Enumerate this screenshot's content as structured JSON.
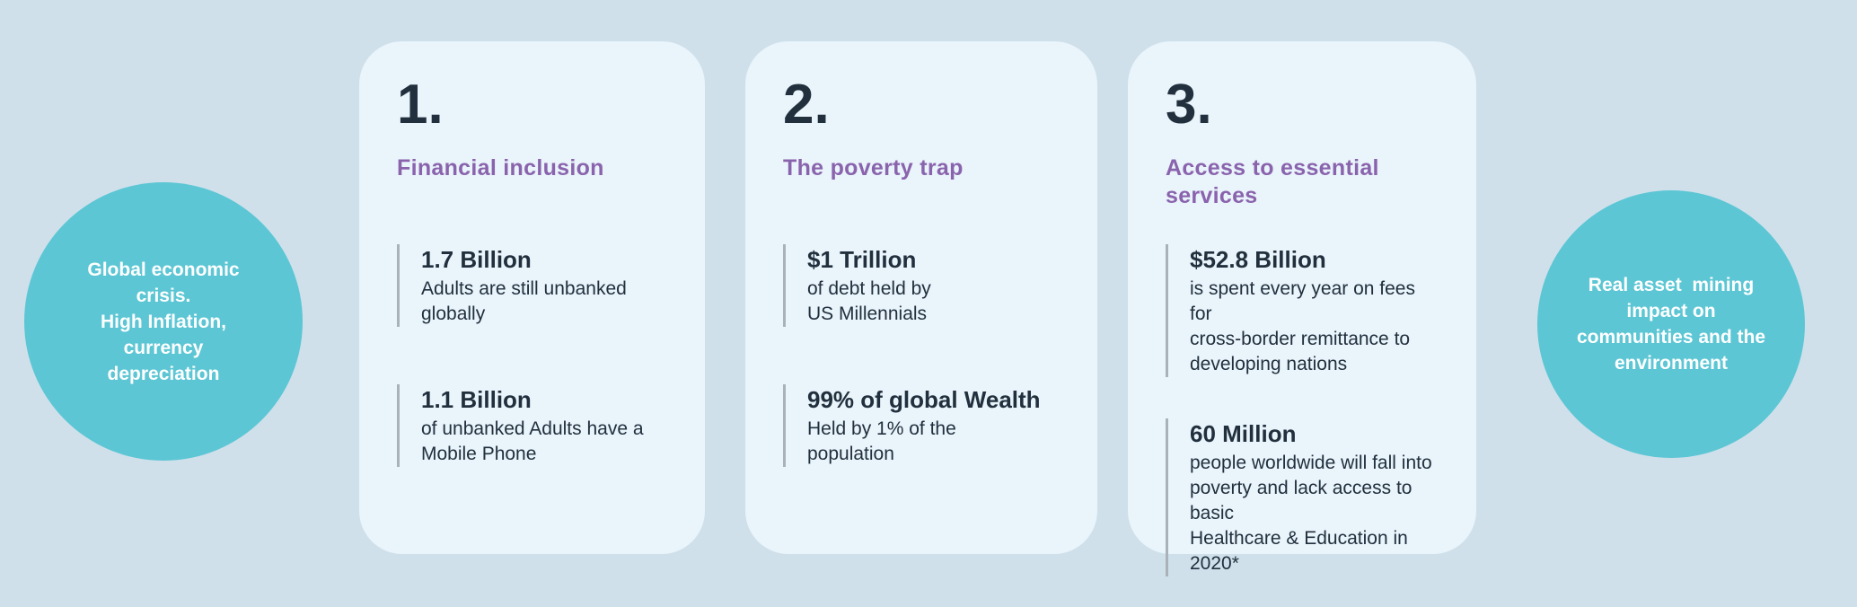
{
  "colors": {
    "background": "#cfe0eb",
    "card_background": "#e9f4fb",
    "bubble_teal": "#5cc6d4",
    "heading_purple": "#8a63ad",
    "text_dark": "#22303e",
    "stat_bar_gray": "#a9b2b8"
  },
  "bubbles": {
    "left": {
      "text": "Global economic\ncrisis.\nHigh Inflation,\ncurrency\ndepreciation"
    },
    "right": {
      "text": "Real asset  mining\nimpact on\ncommunities and the\nenvironment"
    }
  },
  "cards": [
    {
      "number": "1.",
      "title": "Financial inclusion",
      "stats": [
        {
          "value": "1.7 Billion",
          "description": "Adults are still unbanked\nglobally"
        },
        {
          "value": "1.1 Billion",
          "description": "of unbanked Adults have a\nMobile Phone"
        }
      ]
    },
    {
      "number": "2.",
      "title": "The poverty trap",
      "stats": [
        {
          "value": "$1 Trillion",
          "description": "of debt held by\nUS Millennials"
        },
        {
          "value": "99% of global Wealth",
          "description": "Held by 1% of the\npopulation"
        }
      ]
    },
    {
      "number": "3.",
      "title": "Access to essential services",
      "stats": [
        {
          "value": "$52.8 Billion",
          "description": "is spent every year on fees for\ncross-border remittance to\ndeveloping nations"
        },
        {
          "value": "60 Million",
          "description": "people worldwide will fall into\npoverty and lack access to basic\nHealthcare & Education in 2020*"
        }
      ]
    }
  ]
}
